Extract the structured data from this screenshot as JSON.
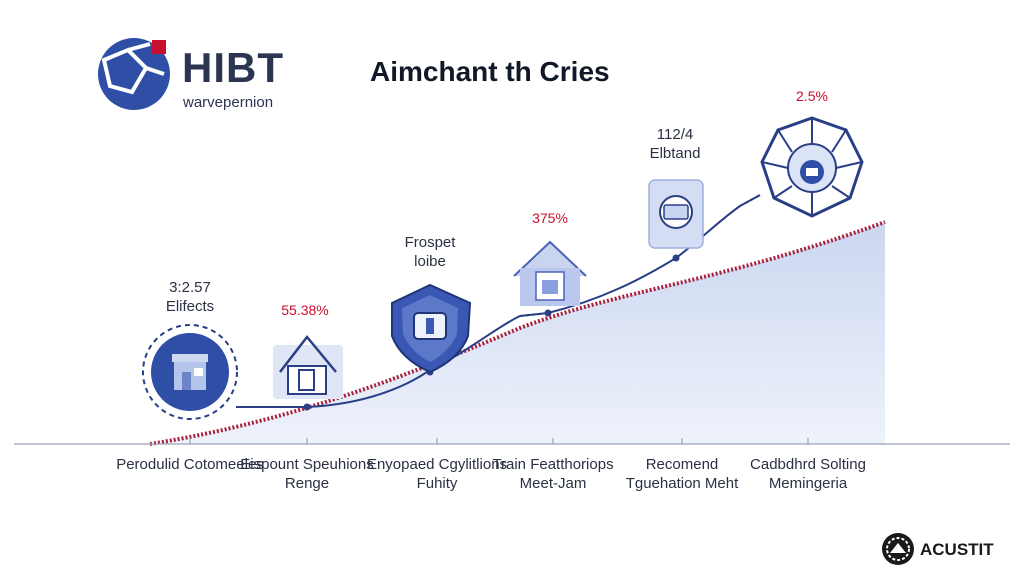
{
  "brand": {
    "name": "HIBT",
    "subtitle": "warvepernion"
  },
  "title": "Aimchant th Cries",
  "steps": [
    {
      "top_label": "3:2.57\nElifects",
      "percent": "",
      "category": "Perodulid\nCotomeeles",
      "icon": "storefront-icon"
    },
    {
      "top_label": "",
      "percent": "55.38%",
      "category": "Eispount\nSpeuhions\nRenge",
      "icon": "house-icon"
    },
    {
      "top_label": "Frospet\nloibe",
      "percent": "",
      "category": "Enyopaed\nCgylitlions\nFuhity",
      "icon": "shield-icon"
    },
    {
      "top_label": "",
      "percent": "375%",
      "category": "Train\nFeatthoriops\nMeet-Jam",
      "icon": "house-icon"
    },
    {
      "top_label": "112/4\nElbtand",
      "percent": "",
      "category": "Recomend\nTguehation\nMeht",
      "icon": "wallet-icon"
    },
    {
      "top_label": "",
      "percent": "2.5%",
      "category": "Cadbdhrd\nSolting\nMemingeria",
      "icon": "network-badge-icon"
    }
  ],
  "footer": {
    "brand": "ACUSTIT"
  },
  "colors": {
    "navy": "#2f4a9b",
    "red": "#c8102e",
    "area": "#dde5f6"
  }
}
